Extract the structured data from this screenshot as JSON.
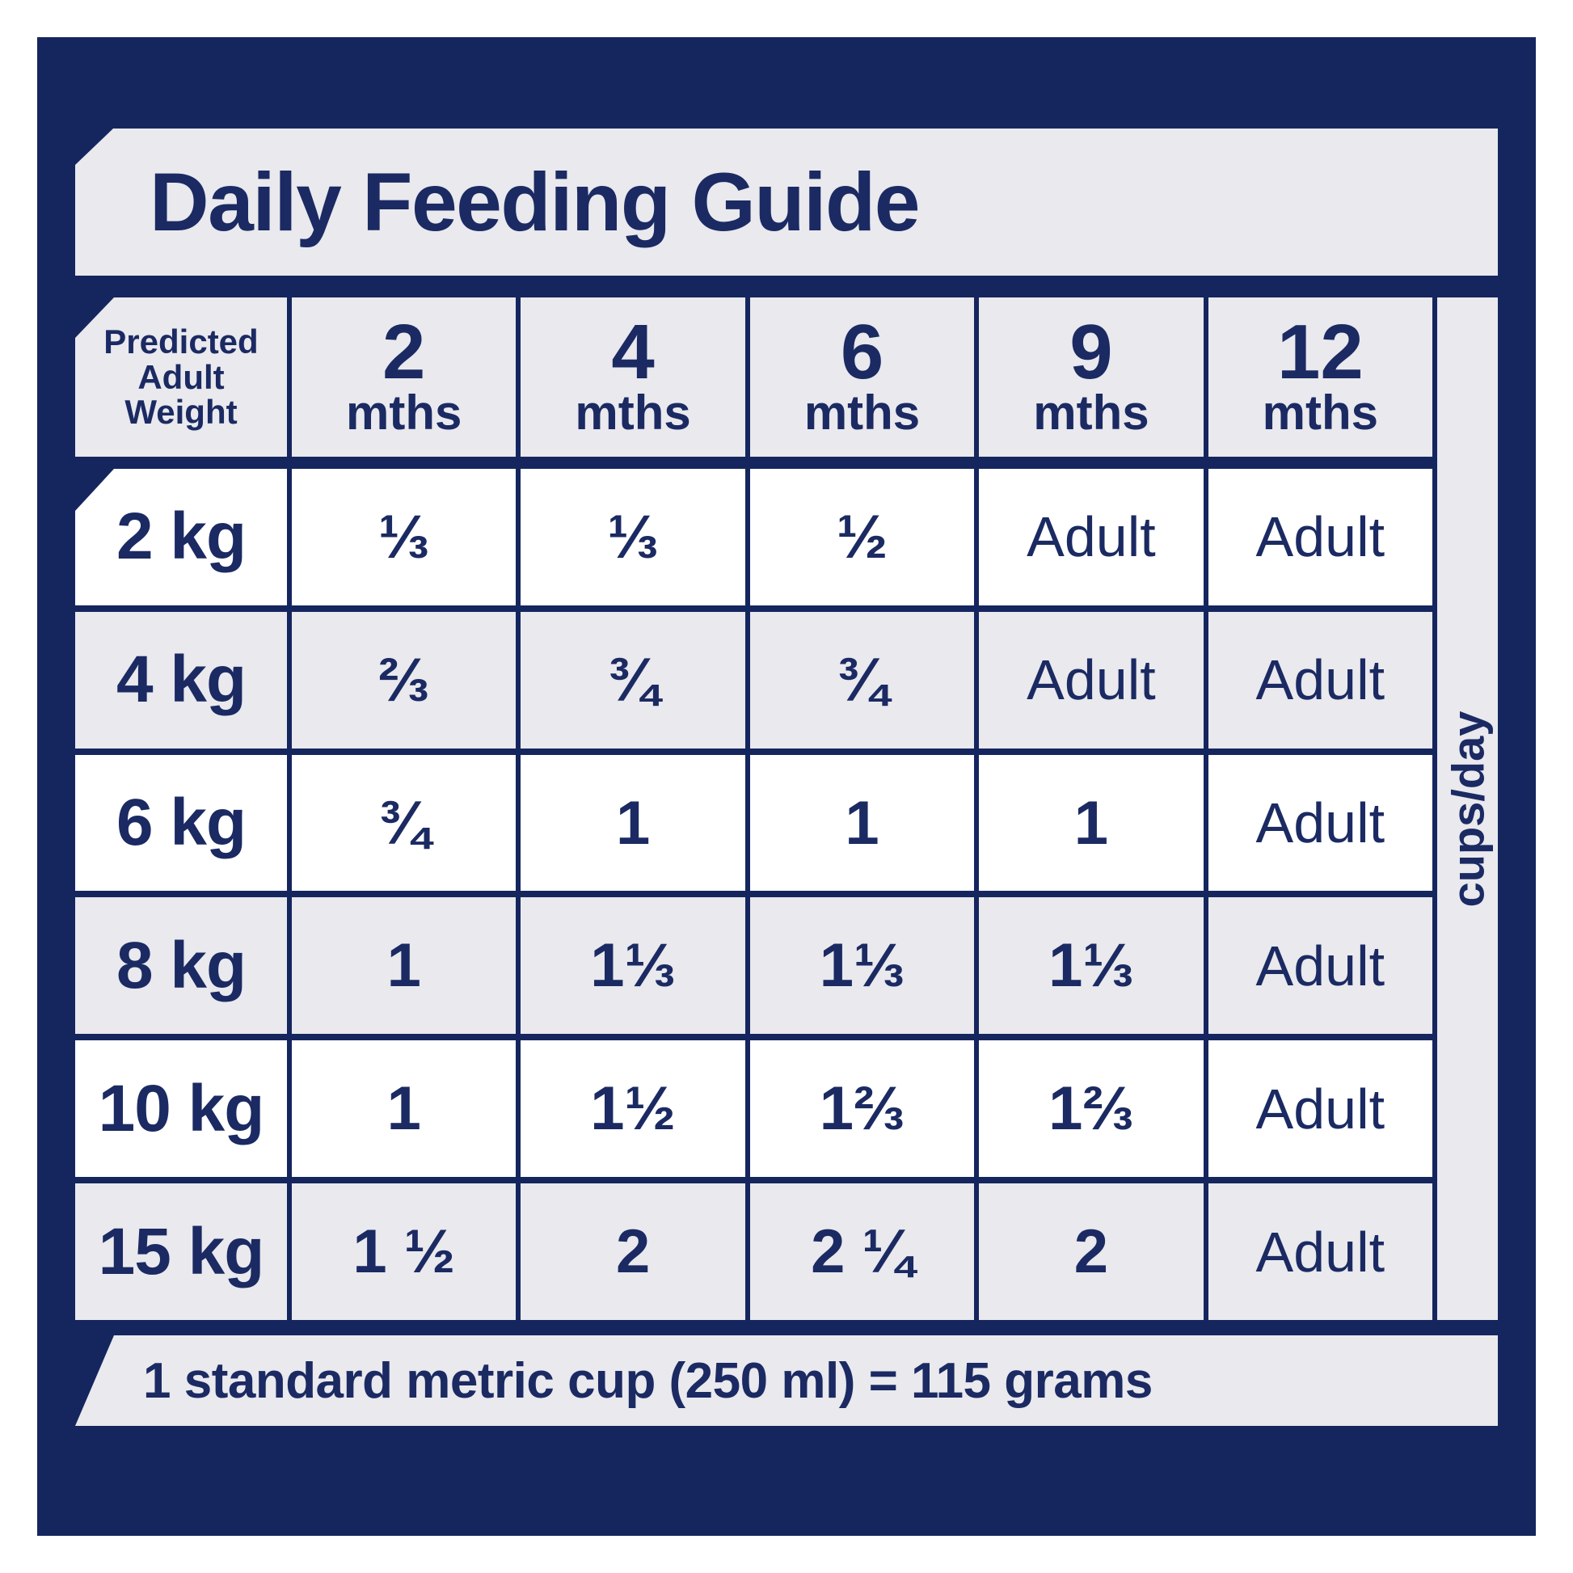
{
  "colors": {
    "navy_background": "#15265e",
    "panel_gray": "#e9e9ee",
    "cell_white": "#ffffff",
    "text_navy": "#1b2a62"
  },
  "title": "Daily Feeding Guide",
  "table": {
    "corner_lines": [
      "Predicted",
      "Adult",
      "Weight"
    ],
    "age_columns": [
      {
        "num": "2",
        "unit": "mths"
      },
      {
        "num": "4",
        "unit": "mths"
      },
      {
        "num": "6",
        "unit": "mths"
      },
      {
        "num": "9",
        "unit": "mths"
      },
      {
        "num": "12",
        "unit": "mths"
      }
    ],
    "unit_label": "cups/day",
    "rows": [
      {
        "weight": "2 kg",
        "values": [
          "⅓",
          "⅓",
          "½",
          "Adult",
          "Adult"
        ]
      },
      {
        "weight": "4 kg",
        "values": [
          "⅔",
          "¾",
          "¾",
          "Adult",
          "Adult"
        ]
      },
      {
        "weight": "6 kg",
        "values": [
          "¾",
          "1",
          "1",
          "1",
          "Adult"
        ]
      },
      {
        "weight": "8 kg",
        "values": [
          "1",
          "1⅓",
          "1⅓",
          "1⅓",
          "Adult"
        ]
      },
      {
        "weight": "10 kg",
        "values": [
          "1",
          "1½",
          "1⅔",
          "1⅔",
          "Adult"
        ]
      },
      {
        "weight": "15 kg",
        "values": [
          "1 ½",
          "2",
          "2 ¼",
          "2",
          "Adult"
        ]
      }
    ]
  },
  "footnote": "1 standard metric cup (250 ml) = 115 grams",
  "chart_data": {
    "type": "table",
    "title": "Daily Feeding Guide",
    "unit": "cups/day",
    "row_header": "Predicted Adult Weight",
    "columns": [
      "2 mths",
      "4 mths",
      "6 mths",
      "9 mths",
      "12 mths"
    ],
    "rows": [
      "2 kg",
      "4 kg",
      "6 kg",
      "8 kg",
      "10 kg",
      "15 kg"
    ],
    "values": [
      [
        "1/3",
        "1/3",
        "1/2",
        "Adult",
        "Adult"
      ],
      [
        "2/3",
        "3/4",
        "3/4",
        "Adult",
        "Adult"
      ],
      [
        "3/4",
        "1",
        "1",
        "1",
        "Adult"
      ],
      [
        "1",
        "1 1/3",
        "1 1/3",
        "1 1/3",
        "Adult"
      ],
      [
        "1",
        "1 1/2",
        "1 2/3",
        "1 2/3",
        "Adult"
      ],
      [
        "1 1/2",
        "2",
        "2 1/4",
        "2",
        "Adult"
      ]
    ],
    "footnote": "1 standard metric cup (250 ml) = 115 grams"
  }
}
